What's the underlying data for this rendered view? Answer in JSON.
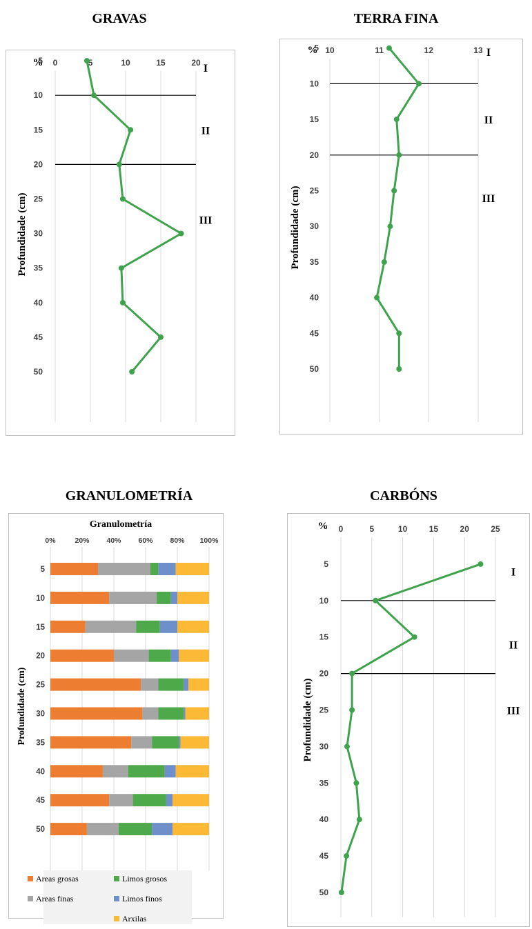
{
  "titles": {
    "gravas": "GRAVAS",
    "terra_fina": "TERRA FINA",
    "granulometria": "GRANULOMETRÍA",
    "carbons": "CARBÓNS"
  },
  "colors": {
    "line": "#3fa34d",
    "grid": "#d9d9d9",
    "boundary": "#000000",
    "areas_grosas": "#ed7d31",
    "areas_finas": "#a5a5a5",
    "limos_grosos": "#4ea94b",
    "limos_finos": "#6e8fc9",
    "arxilas": "#fbb936"
  },
  "chart_data": [
    {
      "id": "gravas",
      "type": "line",
      "title": "GRAVAS",
      "ylabel": "Profundidade (cm)",
      "x_unit_label": "%",
      "x_ticks": [
        0,
        5,
        10,
        15,
        20
      ],
      "xlim": [
        0,
        20
      ],
      "y_ticks": [
        5,
        10,
        15,
        20,
        25,
        30,
        35,
        40,
        45,
        50
      ],
      "ylim": [
        0,
        52
      ],
      "y_inverted": true,
      "points": [
        {
          "depth": 5,
          "value": 4.5
        },
        {
          "depth": 10,
          "value": 5.5
        },
        {
          "depth": 15,
          "value": 10.7
        },
        {
          "depth": 20,
          "value": 9.1
        },
        {
          "depth": 25,
          "value": 9.6
        },
        {
          "depth": 30,
          "value": 17.9
        },
        {
          "depth": 35,
          "value": 9.4
        },
        {
          "depth": 40,
          "value": 9.6
        },
        {
          "depth": 45,
          "value": 15.0
        },
        {
          "depth": 50,
          "value": 10.9
        }
      ],
      "boundaries": [
        10,
        20
      ],
      "zones": [
        {
          "label": "I",
          "depth": 6
        },
        {
          "label": "II",
          "depth": 15
        },
        {
          "label": "III",
          "depth": 28
        }
      ]
    },
    {
      "id": "terra_fina",
      "type": "line",
      "title": "TERRA FINA",
      "ylabel": "Profundidade (cm)",
      "x_unit_label": "%",
      "x_ticks": [
        10,
        11,
        12,
        13
      ],
      "xlim": [
        10,
        13
      ],
      "y_ticks": [
        5,
        10,
        15,
        20,
        25,
        30,
        35,
        40,
        45,
        50
      ],
      "ylim": [
        0,
        52
      ],
      "y_inverted": true,
      "points": [
        {
          "depth": 5,
          "value": 11.2
        },
        {
          "depth": 10,
          "value": 11.8
        },
        {
          "depth": 15,
          "value": 11.35
        },
        {
          "depth": 20,
          "value": 11.4
        },
        {
          "depth": 25,
          "value": 11.3
        },
        {
          "depth": 30,
          "value": 11.22
        },
        {
          "depth": 35,
          "value": 11.1
        },
        {
          "depth": 40,
          "value": 10.95
        },
        {
          "depth": 45,
          "value": 11.4
        },
        {
          "depth": 50,
          "value": 11.4
        }
      ],
      "boundaries": [
        10,
        20
      ],
      "zones": [
        {
          "label": "I",
          "depth": 5.5
        },
        {
          "label": "II",
          "depth": 15
        },
        {
          "label": "III",
          "depth": 26
        }
      ]
    },
    {
      "id": "granulometria",
      "type": "bar",
      "stacked_percent": true,
      "title": "GRANULOMETRÍA",
      "chart_title": "Granulometría",
      "ylabel": "Profundidade (cm)",
      "x_ticks": [
        "0%",
        "20%",
        "40%",
        "60%",
        "80%",
        "100%"
      ],
      "categories": [
        "5",
        "10",
        "15",
        "20",
        "25",
        "30",
        "35",
        "40",
        "45",
        "50"
      ],
      "series": [
        {
          "name": "Areas grosas",
          "color": "#ed7d31",
          "values": [
            30,
            37,
            22,
            40,
            57,
            58,
            51,
            33,
            37,
            23
          ]
        },
        {
          "name": "Areas finas",
          "color": "#a5a5a5",
          "values": [
            33,
            30,
            32,
            22,
            11,
            10,
            13,
            16,
            15,
            20
          ]
        },
        {
          "name": "Limos grosos",
          "color": "#4ea94b",
          "values": [
            5,
            9,
            15,
            14,
            16,
            16,
            17,
            23,
            21,
            21
          ]
        },
        {
          "name": "Limos finos",
          "color": "#6e8fc9",
          "values": [
            11,
            4,
            11,
            5,
            3,
            1,
            1,
            7,
            4,
            13
          ]
        },
        {
          "name": "Arxilas",
          "color": "#fbb936",
          "values": [
            21,
            20,
            20,
            19,
            13,
            15,
            18,
            21,
            23,
            23
          ]
        }
      ],
      "legend": [
        "Areas grosas",
        "Limos grosos",
        "Areas finas",
        "Limos finos",
        "Arxilas"
      ]
    },
    {
      "id": "carbons",
      "type": "line",
      "title": "CARBÓNS",
      "ylabel": "Profundidade (cm)",
      "x_unit_label": "%",
      "x_ticks": [
        0,
        5,
        10,
        15,
        20,
        25
      ],
      "xlim": [
        0,
        25
      ],
      "y_ticks": [
        5,
        10,
        15,
        20,
        25,
        30,
        35,
        40,
        45,
        50
      ],
      "ylim": [
        0,
        52
      ],
      "y_inverted": true,
      "points": [
        {
          "depth": 5,
          "value": 22.6
        },
        {
          "depth": 10,
          "value": 5.6
        },
        {
          "depth": 15,
          "value": 11.9
        },
        {
          "depth": 20,
          "value": 1.8
        },
        {
          "depth": 25,
          "value": 1.8
        },
        {
          "depth": 30,
          "value": 1.0
        },
        {
          "depth": 35,
          "value": 2.5
        },
        {
          "depth": 40,
          "value": 3.0
        },
        {
          "depth": 45,
          "value": 0.9
        },
        {
          "depth": 50,
          "value": 0.1
        }
      ],
      "boundaries": [
        10,
        20
      ],
      "zones": [
        {
          "label": "I",
          "depth": 6
        },
        {
          "label": "II",
          "depth": 16
        },
        {
          "label": "III",
          "depth": 25
        }
      ]
    }
  ]
}
